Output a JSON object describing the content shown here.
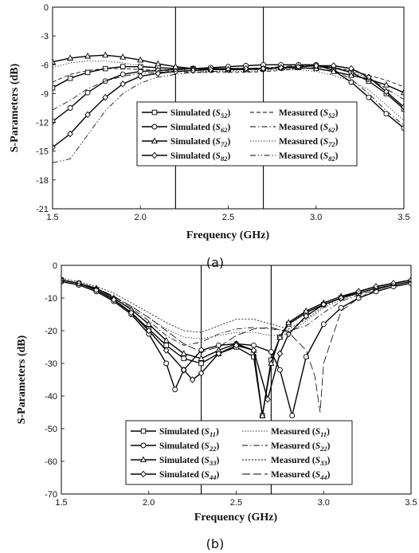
{
  "chart_data": [
    {
      "type": "line",
      "caption": "(a)",
      "xlabel": "Frequency (GHz)",
      "ylabel": "S-Parameters (dB)",
      "xlim": [
        1.5,
        3.5
      ],
      "ylim": [
        -21,
        0
      ],
      "xticks": [
        "1.5",
        "2.0",
        "2.5",
        "3.0",
        "3.5"
      ],
      "yticks": [
        "0",
        "-3",
        "-6",
        "-9",
        "-12",
        "-15",
        "-18",
        "-21"
      ],
      "vlines": [
        2.2,
        2.7
      ],
      "grid": false,
      "legend_position": "center-right",
      "x": [
        1.5,
        1.6,
        1.7,
        1.8,
        1.9,
        2.0,
        2.1,
        2.2,
        2.3,
        2.4,
        2.5,
        2.6,
        2.7,
        2.8,
        2.9,
        3.0,
        3.1,
        3.2,
        3.3,
        3.4,
        3.5
      ],
      "series": [
        {
          "name": "Simulated (S52)",
          "style": "solid",
          "marker": "square",
          "values": [
            -8.4,
            -7.4,
            -6.8,
            -6.4,
            -6.2,
            -6.2,
            -6.3,
            -6.4,
            -6.4,
            -6.4,
            -6.4,
            -6.4,
            -6.4,
            -6.3,
            -6.2,
            -6.1,
            -6.3,
            -6.8,
            -7.7,
            -9.0,
            -10.6
          ]
        },
        {
          "name": "Simulated (S62)",
          "style": "solid",
          "marker": "circle",
          "values": [
            -11.9,
            -10.5,
            -8.9,
            -7.7,
            -7.0,
            -6.7,
            -6.6,
            -6.5,
            -6.4,
            -6.3,
            -6.2,
            -6.1,
            -6.0,
            -6.0,
            -6.0,
            -6.0,
            -6.6,
            -7.8,
            -9.4,
            -11.1,
            -12.6
          ]
        },
        {
          "name": "Simulated (S72)",
          "style": "solid",
          "marker": "triangle",
          "values": [
            -5.7,
            -5.3,
            -5.1,
            -5.0,
            -5.2,
            -5.5,
            -5.9,
            -6.2,
            -6.4,
            -6.5,
            -6.5,
            -6.5,
            -6.4,
            -6.3,
            -6.3,
            -6.4,
            -6.7,
            -7.1,
            -7.5,
            -8.1,
            -8.9
          ]
        },
        {
          "name": "Simulated (S82)",
          "style": "solid",
          "marker": "diamond",
          "values": [
            -14.6,
            -13.2,
            -11.2,
            -9.4,
            -8.0,
            -7.2,
            -6.9,
            -6.7,
            -6.6,
            -6.5,
            -6.5,
            -6.4,
            -6.4,
            -6.3,
            -6.2,
            -6.1,
            -6.1,
            -6.4,
            -7.3,
            -8.8,
            -10.4
          ]
        },
        {
          "name": "Measured (S52)",
          "style": "dash",
          "values": [
            -7.8,
            -7.0,
            -6.6,
            -6.4,
            -6.4,
            -6.5,
            -6.6,
            -6.7,
            -6.8,
            -6.8,
            -6.8,
            -6.8,
            -6.7,
            -6.6,
            -6.4,
            -6.3,
            -6.3,
            -6.6,
            -7.1,
            -7.6,
            -8.3
          ]
        },
        {
          "name": "Measured (S62)",
          "style": "dashdot",
          "values": [
            -10.7,
            -9.7,
            -8.5,
            -7.7,
            -7.2,
            -6.9,
            -6.8,
            -6.7,
            -6.6,
            -6.5,
            -6.5,
            -6.4,
            -6.3,
            -6.2,
            -6.1,
            -6.1,
            -6.5,
            -7.5,
            -9.0,
            -10.8,
            -12.3
          ]
        },
        {
          "name": "Measured (S72)",
          "style": "dot",
          "values": [
            -6.3,
            -5.8,
            -5.6,
            -5.6,
            -5.8,
            -6.1,
            -6.3,
            -6.5,
            -6.6,
            -6.7,
            -6.7,
            -6.7,
            -6.6,
            -6.5,
            -6.5,
            -6.7,
            -7.1,
            -7.7,
            -8.6,
            -10.2,
            -11.8
          ]
        },
        {
          "name": "Measured (S82)",
          "style": "dashdotdot",
          "values": [
            -16.2,
            -15.8,
            -13.3,
            -10.8,
            -9.0,
            -7.9,
            -7.3,
            -7.0,
            -6.8,
            -6.7,
            -6.6,
            -6.5,
            -6.5,
            -6.4,
            -6.4,
            -6.3,
            -6.3,
            -6.7,
            -7.4,
            -8.5,
            -9.6
          ]
        }
      ]
    },
    {
      "type": "line",
      "caption": "(b)",
      "xlabel": "Frequency (GHz)",
      "ylabel": "S-Parameters (dB)",
      "xlim": [
        1.5,
        3.5
      ],
      "ylim": [
        -70,
        0
      ],
      "xticks": [
        "1.5",
        "2.0",
        "2.5",
        "3.0",
        "3.5"
      ],
      "yticks": [
        "0",
        "-10",
        "-20",
        "-30",
        "-40",
        "-50",
        "-60",
        "-70"
      ],
      "vlines": [
        2.3,
        2.7
      ],
      "grid": false,
      "legend_position": "bottom-center",
      "series": [
        {
          "name": "Simulated (S11)",
          "style": "solid",
          "marker": "square",
          "x": [
            1.5,
            1.6,
            1.7,
            1.8,
            1.9,
            2.0,
            2.1,
            2.2,
            2.3,
            2.4,
            2.5,
            2.6,
            2.65,
            2.7,
            2.75,
            2.8,
            2.9,
            3.0,
            3.1,
            3.2,
            3.3,
            3.4,
            3.5
          ],
          "values": [
            -4.5,
            -5.5,
            -7.5,
            -10.5,
            -14.5,
            -19.5,
            -24.5,
            -28.5,
            -30,
            -27,
            -25,
            -28,
            -46,
            -29,
            -22,
            -18,
            -14.5,
            -12,
            -10,
            -8.5,
            -7,
            -6,
            -5
          ]
        },
        {
          "name": "Simulated (S22)",
          "style": "solid",
          "marker": "circle",
          "x": [
            1.5,
            1.6,
            1.7,
            1.8,
            1.9,
            2.0,
            2.1,
            2.15,
            2.2,
            2.3,
            2.4,
            2.5,
            2.6,
            2.7,
            2.75,
            2.82,
            2.9,
            3.0,
            3.1,
            3.2,
            3.3,
            3.4,
            3.5
          ],
          "values": [
            -5,
            -6,
            -8,
            -11,
            -15,
            -21,
            -30,
            -38,
            -32,
            -26,
            -24.5,
            -24,
            -24.5,
            -26.5,
            -32,
            -46,
            -28,
            -18,
            -13,
            -10,
            -8,
            -6.5,
            -5.5
          ]
        },
        {
          "name": "Simulated (S33)",
          "style": "solid",
          "marker": "triangle",
          "x": [
            1.5,
            1.6,
            1.7,
            1.8,
            1.9,
            2.0,
            2.1,
            2.2,
            2.3,
            2.4,
            2.5,
            2.6,
            2.65,
            2.7,
            2.75,
            2.8,
            2.9,
            3.0,
            3.1,
            3.2,
            3.3,
            3.4,
            3.5
          ],
          "values": [
            -4.5,
            -5.5,
            -7,
            -10,
            -13.5,
            -18,
            -23,
            -27,
            -28.5,
            -26,
            -24,
            -26,
            -46,
            -30,
            -22,
            -17.5,
            -14,
            -11.5,
            -9.5,
            -8,
            -6.5,
            -5.5,
            -4.5
          ]
        },
        {
          "name": "Simulated (S44)",
          "style": "solid",
          "marker": "diamond",
          "x": [
            1.5,
            1.6,
            1.7,
            1.8,
            1.9,
            2.0,
            2.1,
            2.2,
            2.25,
            2.3,
            2.4,
            2.5,
            2.6,
            2.68,
            2.75,
            2.8,
            2.9,
            3.0,
            3.1,
            3.2,
            3.3,
            3.4,
            3.5
          ],
          "values": [
            -4.5,
            -5.5,
            -7.5,
            -10.5,
            -14.5,
            -20,
            -26,
            -32,
            -35,
            -33,
            -27,
            -24.5,
            -26,
            -41,
            -27,
            -21,
            -15.5,
            -12,
            -10,
            -8,
            -6.5,
            -5.5,
            -4.5
          ]
        },
        {
          "name": "Measured (S11)",
          "style": "dot",
          "x": [
            1.5,
            1.6,
            1.7,
            1.8,
            1.9,
            2.0,
            2.1,
            2.2,
            2.3,
            2.4,
            2.5,
            2.6,
            2.7,
            2.8,
            2.9,
            3.0,
            3.1,
            3.2,
            3.3,
            3.4,
            3.5
          ],
          "values": [
            -4.5,
            -5.5,
            -7,
            -9.5,
            -12.5,
            -16,
            -19.5,
            -22,
            -22.5,
            -21.5,
            -20.5,
            -20.5,
            -21.5,
            -21,
            -17,
            -13,
            -10.5,
            -8.5,
            -7,
            -6,
            -5
          ]
        },
        {
          "name": "Measured (S22)",
          "style": "dashdot",
          "x": [
            1.5,
            1.6,
            1.7,
            1.8,
            1.9,
            2.0,
            2.1,
            2.2,
            2.3,
            2.4,
            2.5,
            2.6,
            2.7,
            2.8,
            2.9,
            3.0,
            3.1,
            3.2,
            3.3,
            3.4,
            3.5
          ],
          "values": [
            -4.5,
            -5.5,
            -7,
            -9.5,
            -13,
            -17,
            -21.5,
            -24.5,
            -23.5,
            -21,
            -19.5,
            -19,
            -19.5,
            -20,
            -18.5,
            -14.5,
            -11,
            -9,
            -7.5,
            -6,
            -5
          ]
        },
        {
          "name": "Measured (S33)",
          "style": "shortdot",
          "x": [
            1.5,
            1.6,
            1.7,
            1.8,
            1.9,
            2.0,
            2.1,
            2.2,
            2.3,
            2.4,
            2.5,
            2.6,
            2.7,
            2.8,
            2.9,
            3.0,
            3.1,
            3.2,
            3.3,
            3.4,
            3.5
          ],
          "values": [
            -4,
            -5,
            -6.5,
            -8.5,
            -11.5,
            -14.5,
            -17.5,
            -20,
            -20.5,
            -18.5,
            -16.5,
            -16.5,
            -18,
            -19.5,
            -16.5,
            -12.5,
            -10,
            -8,
            -6.5,
            -5.5,
            -4.5
          ]
        },
        {
          "name": "Measured (S44)",
          "style": "longdash",
          "x": [
            1.5,
            1.6,
            1.7,
            1.8,
            1.9,
            2.0,
            2.1,
            2.2,
            2.3,
            2.4,
            2.5,
            2.6,
            2.7,
            2.8,
            2.9,
            2.95,
            2.98,
            3.0,
            3.1,
            3.2,
            3.3,
            3.4,
            3.5
          ],
          "values": [
            -4.5,
            -5.5,
            -7,
            -9.5,
            -12.5,
            -16,
            -20,
            -24,
            -26.5,
            -25,
            -21.5,
            -19.5,
            -19,
            -20.5,
            -26,
            -34,
            -45,
            -30,
            -14,
            -10,
            -7.5,
            -6,
            -5
          ]
        }
      ]
    }
  ]
}
